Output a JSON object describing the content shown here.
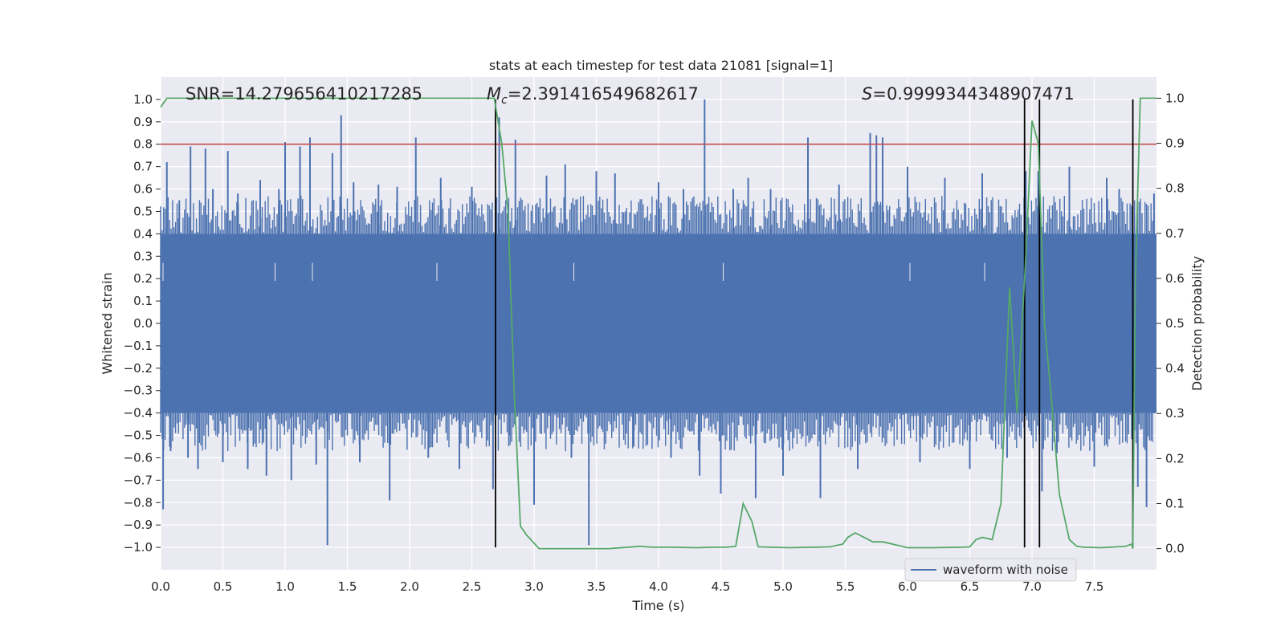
{
  "chart_data": {
    "type": "line",
    "title": "stats at each timestep for test data 21081 [signal=1]",
    "xlabel": "Time (s)",
    "ylabel": "Whitened strain",
    "y2label": "Detection probability",
    "xlim": [
      0.0,
      8.0
    ],
    "ylim": [
      -1.1,
      1.1
    ],
    "y2lim": [
      -0.047,
      1.047
    ],
    "x_ticks": [
      0.0,
      0.5,
      1.0,
      1.5,
      2.0,
      2.5,
      3.0,
      3.5,
      4.0,
      4.5,
      5.0,
      5.5,
      6.0,
      6.5,
      7.0,
      7.5
    ],
    "x_tick_labels": [
      "0.0",
      "0.5",
      "1.0",
      "1.5",
      "2.0",
      "2.5",
      "3.0",
      "3.5",
      "4.0",
      "4.5",
      "5.0",
      "5.5",
      "6.0",
      "6.5",
      "7.0",
      "7.5"
    ],
    "y_ticks": [
      1.0,
      0.9,
      0.8,
      0.7,
      0.6,
      0.5,
      0.4,
      0.3,
      0.2,
      0.1,
      0.0,
      -0.1,
      -0.2,
      -0.3,
      -0.4,
      -0.5,
      -0.6,
      -0.7,
      -0.8,
      -0.9,
      -1.0
    ],
    "y_tick_labels": [
      "1.0",
      "0.9",
      "0.8",
      "0.7",
      "0.6",
      "0.5",
      "0.4",
      "0.3",
      "0.2",
      "0.1",
      "0.0",
      "−0.1",
      "−0.2",
      "−0.3",
      "−0.4",
      "−0.5",
      "−0.6",
      "−0.7",
      "−0.8",
      "−0.9",
      "−1.0"
    ],
    "y2_ticks": [
      1.0,
      0.9,
      0.8,
      0.7,
      0.6,
      0.5,
      0.4,
      0.3,
      0.2,
      0.1,
      0.0
    ],
    "y2_tick_labels": [
      "1.0",
      "0.9",
      "0.8",
      "0.7",
      "0.6",
      "0.5",
      "0.4",
      "0.3",
      "0.2",
      "0.1",
      "0.0"
    ],
    "threshold": 0.8,
    "vlines": [
      2.69,
      6.94,
      7.06,
      7.81
    ],
    "annotations": {
      "snr": "SNR=14.279656410217285",
      "mc_symbol": "M",
      "mc_sub": "c",
      "mc_value": "=2.391416549682617",
      "s_symbol": "S",
      "s_value": "=0.9999344348907471"
    },
    "legend": {
      "label": "waveform with noise",
      "position": "lower-right"
    },
    "waveform": {
      "name": "waveform with noise",
      "envelope": 0.4,
      "spikes": [
        {
          "x": 0.02,
          "y": -0.83
        },
        {
          "x": 0.05,
          "y": 0.72
        },
        {
          "x": 0.08,
          "y": -0.57
        },
        {
          "x": 0.15,
          "y": 0.55
        },
        {
          "x": 0.22,
          "y": -0.6
        },
        {
          "x": 0.24,
          "y": 0.79
        },
        {
          "x": 0.3,
          "y": -0.65
        },
        {
          "x": 0.36,
          "y": 0.78
        },
        {
          "x": 0.42,
          "y": 0.6
        },
        {
          "x": 0.5,
          "y": -0.62
        },
        {
          "x": 0.54,
          "y": 0.77
        },
        {
          "x": 0.62,
          "y": 0.58
        },
        {
          "x": 0.7,
          "y": -0.65
        },
        {
          "x": 0.8,
          "y": 0.64
        },
        {
          "x": 0.85,
          "y": -0.68
        },
        {
          "x": 0.95,
          "y": 0.6
        },
        {
          "x": 1.0,
          "y": 0.81
        },
        {
          "x": 1.05,
          "y": -0.7
        },
        {
          "x": 1.12,
          "y": 0.79
        },
        {
          "x": 1.2,
          "y": 0.83
        },
        {
          "x": 1.25,
          "y": -0.63
        },
        {
          "x": 1.34,
          "y": -0.99
        },
        {
          "x": 1.38,
          "y": 0.76
        },
        {
          "x": 1.45,
          "y": 0.93
        },
        {
          "x": 1.55,
          "y": 0.63
        },
        {
          "x": 1.6,
          "y": -0.62
        },
        {
          "x": 1.75,
          "y": 0.62
        },
        {
          "x": 1.84,
          "y": -0.79
        },
        {
          "x": 1.9,
          "y": 0.61
        },
        {
          "x": 2.05,
          "y": 0.83
        },
        {
          "x": 2.15,
          "y": -0.6
        },
        {
          "x": 2.25,
          "y": 0.65
        },
        {
          "x": 2.4,
          "y": -0.65
        },
        {
          "x": 2.5,
          "y": 0.61
        },
        {
          "x": 2.67,
          "y": -0.74
        },
        {
          "x": 2.72,
          "y": 0.92
        },
        {
          "x": 2.8,
          "y": -0.5
        },
        {
          "x": 2.85,
          "y": 0.82
        },
        {
          "x": 3.0,
          "y": -0.81
        },
        {
          "x": 3.1,
          "y": 0.66
        },
        {
          "x": 3.25,
          "y": 0.71
        },
        {
          "x": 3.3,
          "y": -0.6
        },
        {
          "x": 3.44,
          "y": -0.99
        },
        {
          "x": 3.5,
          "y": 0.68
        },
        {
          "x": 3.65,
          "y": 0.67
        },
        {
          "x": 3.8,
          "y": -0.55
        },
        {
          "x": 4.0,
          "y": 0.63
        },
        {
          "x": 4.1,
          "y": -0.6
        },
        {
          "x": 4.2,
          "y": 0.6
        },
        {
          "x": 4.33,
          "y": -0.68
        },
        {
          "x": 4.37,
          "y": 1.0
        },
        {
          "x": 4.5,
          "y": -0.76
        },
        {
          "x": 4.6,
          "y": 0.6
        },
        {
          "x": 4.72,
          "y": 0.65
        },
        {
          "x": 4.78,
          "y": -0.78
        },
        {
          "x": 4.9,
          "y": 0.6
        },
        {
          "x": 5.0,
          "y": -0.68
        },
        {
          "x": 5.2,
          "y": 0.83
        },
        {
          "x": 5.3,
          "y": -0.78
        },
        {
          "x": 5.45,
          "y": 0.62
        },
        {
          "x": 5.6,
          "y": -0.65
        },
        {
          "x": 5.7,
          "y": 0.85
        },
        {
          "x": 5.75,
          "y": 0.84
        },
        {
          "x": 5.8,
          "y": 0.83
        },
        {
          "x": 6.0,
          "y": 0.7
        },
        {
          "x": 6.1,
          "y": -0.62
        },
        {
          "x": 6.3,
          "y": 0.65
        },
        {
          "x": 6.5,
          "y": -0.65
        },
        {
          "x": 6.6,
          "y": 0.67
        },
        {
          "x": 6.8,
          "y": -0.6
        },
        {
          "x": 6.95,
          "y": 0.68
        },
        {
          "x": 7.05,
          "y": 0.68
        },
        {
          "x": 7.08,
          "y": -0.75
        },
        {
          "x": 7.2,
          "y": -0.58
        },
        {
          "x": 7.3,
          "y": 0.7
        },
        {
          "x": 7.5,
          "y": -0.64
        },
        {
          "x": 7.6,
          "y": 0.65
        },
        {
          "x": 7.7,
          "y": 0.6
        },
        {
          "x": 7.85,
          "y": -0.73
        },
        {
          "x": 7.92,
          "y": -0.82
        },
        {
          "x": 7.98,
          "y": 0.58
        }
      ]
    },
    "series": [
      {
        "name": "Detection probability",
        "color": "#55a868",
        "x": [
          0.0,
          0.05,
          0.1,
          0.5,
          1.0,
          1.5,
          2.0,
          2.5,
          2.65,
          2.68,
          2.74,
          2.79,
          2.84,
          2.89,
          2.94,
          2.99,
          3.04,
          3.1,
          3.2,
          3.4,
          3.6,
          3.7,
          3.85,
          3.95,
          4.1,
          4.3,
          4.45,
          4.55,
          4.62,
          4.68,
          4.75,
          4.8,
          4.9,
          5.05,
          5.25,
          5.38,
          5.48,
          5.52,
          5.58,
          5.65,
          5.72,
          5.8,
          5.88,
          6.0,
          6.2,
          6.45,
          6.5,
          6.55,
          6.6,
          6.68,
          6.75,
          6.82,
          6.88,
          6.95,
          7.0,
          7.05,
          7.1,
          7.15,
          7.22,
          7.3,
          7.36,
          7.42,
          7.55,
          7.75,
          7.8,
          7.81,
          7.83,
          7.87,
          7.95,
          8.0
        ],
        "values": [
          0.98,
          1.0,
          1.0,
          1.0,
          1.0,
          1.0,
          1.0,
          1.0,
          1.0,
          1.0,
          0.9,
          0.75,
          0.35,
          0.05,
          0.03,
          0.015,
          0.0,
          0.0,
          0.0,
          0.0,
          0.0,
          0.002,
          0.005,
          0.003,
          0.003,
          0.002,
          0.003,
          0.003,
          0.005,
          0.1,
          0.06,
          0.004,
          0.003,
          0.002,
          0.003,
          0.004,
          0.01,
          0.025,
          0.035,
          0.025,
          0.015,
          0.015,
          0.01,
          0.002,
          0.002,
          0.003,
          0.004,
          0.02,
          0.025,
          0.02,
          0.1,
          0.58,
          0.3,
          0.65,
          0.95,
          0.9,
          0.5,
          0.35,
          0.12,
          0.02,
          0.005,
          0.003,
          0.002,
          0.005,
          0.01,
          0.0,
          0.6,
          1.0,
          1.0,
          1.0
        ]
      }
    ]
  }
}
